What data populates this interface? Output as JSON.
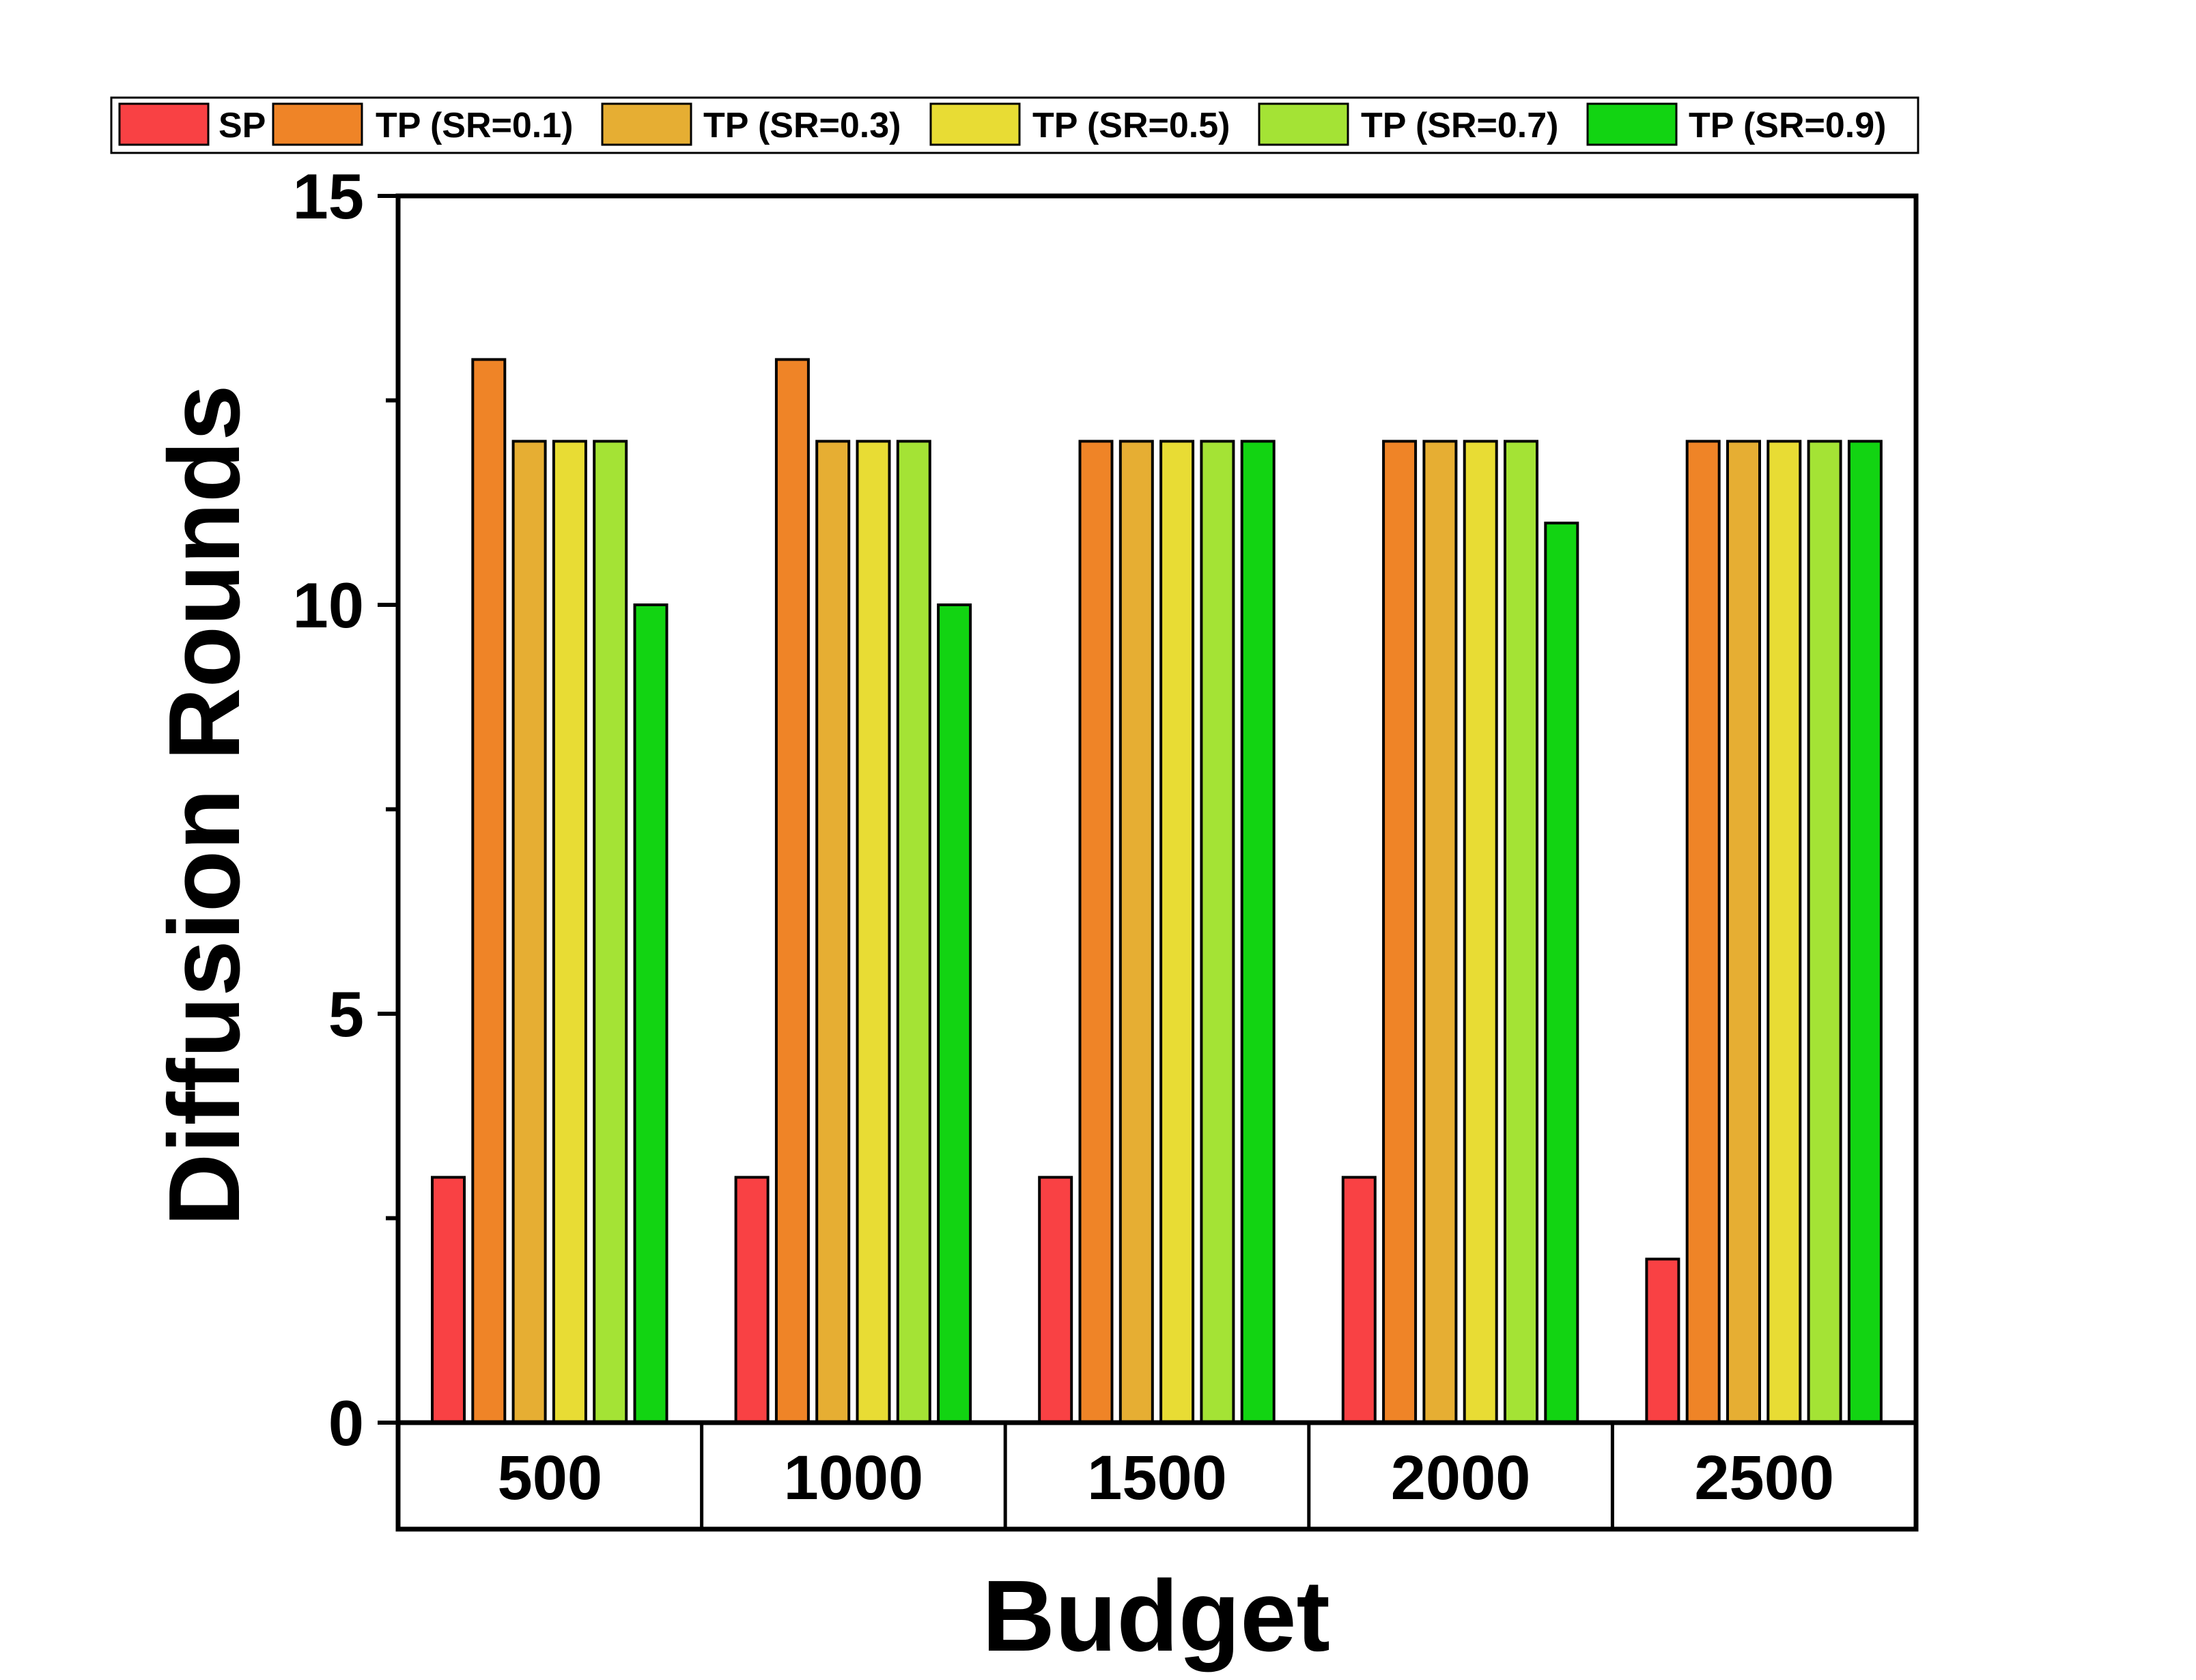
{
  "chart_data": {
    "type": "bar",
    "title": "",
    "xlabel": "Budget",
    "ylabel": "Diffusion Rounds",
    "categories": [
      "500",
      "1000",
      "1500",
      "2000",
      "2500"
    ],
    "ylim": [
      0,
      15
    ],
    "yticks": [
      "0",
      "5",
      "10",
      "15"
    ],
    "grid": false,
    "legend_position": "top",
    "series": [
      {
        "name": "SP",
        "color": "#f94144",
        "values": [
          3,
          3,
          3,
          3,
          2
        ]
      },
      {
        "name": "TP (SR=0.1)",
        "color": "#ef8427",
        "values": [
          13,
          13,
          12,
          12,
          12
        ]
      },
      {
        "name": "TP (SR=0.3)",
        "color": "#e6ae33",
        "values": [
          12,
          12,
          12,
          12,
          12
        ]
      },
      {
        "name": "TP (SR=0.5)",
        "color": "#e8dc34",
        "values": [
          12,
          12,
          12,
          12,
          12
        ]
      },
      {
        "name": "TP (SR=0.7)",
        "color": "#a4e335",
        "values": [
          12,
          12,
          12,
          12,
          12
        ]
      },
      {
        "name": "TP (SR=0.9)",
        "color": "#12d412",
        "values": [
          10,
          10,
          12,
          11,
          12
        ]
      }
    ]
  }
}
